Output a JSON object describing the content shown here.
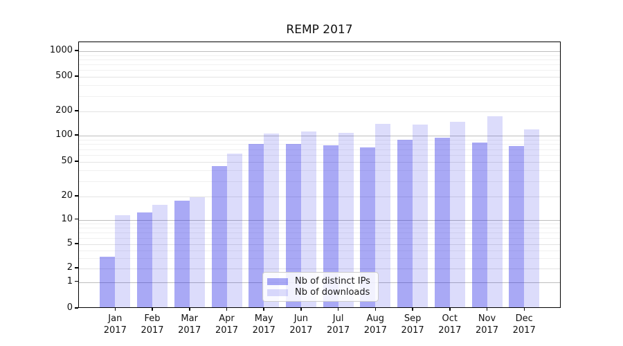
{
  "chart_data": {
    "type": "bar",
    "title": "REMP 2017",
    "categories": [
      "Jan 2017",
      "Feb 2017",
      "Mar 2017",
      "Apr 2017",
      "May 2017",
      "Jun 2017",
      "Jul 2017",
      "Aug 2017",
      "Sep 2017",
      "Oct 2017",
      "Nov 2017",
      "Dec 2017"
    ],
    "series": [
      {
        "name": "Nb of distinct IPs",
        "color": "rgba(40,40,230,0.40)",
        "values": [
          3,
          12,
          17,
          43,
          78,
          78,
          75,
          71,
          87,
          92,
          80,
          73
        ]
      },
      {
        "name": "Nb of downloads",
        "color": "rgba(40,40,230,0.16)",
        "values": [
          11,
          15,
          19,
          60,
          102,
          108,
          104,
          134,
          132,
          143,
          166,
          114
        ]
      }
    ],
    "xlabel": "",
    "ylabel": "",
    "yscale": "symlog",
    "yticks": [
      0,
      1,
      2,
      5,
      10,
      20,
      50,
      100,
      200,
      500,
      1000
    ],
    "ylim": [
      0,
      1300
    ],
    "grid": "horizontal",
    "legend_position": "lower center"
  }
}
